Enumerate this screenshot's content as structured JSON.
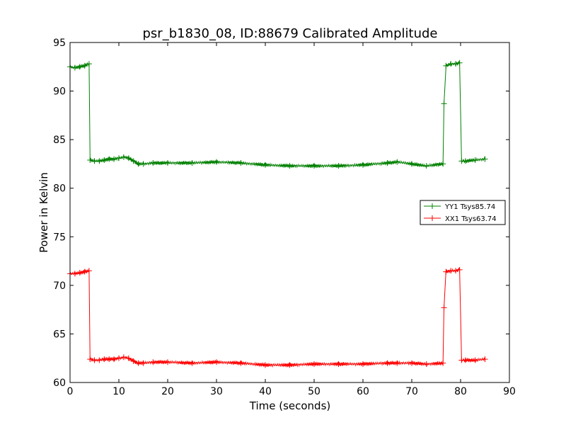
{
  "chart_data": {
    "type": "line",
    "title": "psr_b1830_08, ID:88679 Calibrated Amplitude",
    "xlabel": "Time (seconds)",
    "ylabel": "Power in Kelvin",
    "xlim": [
      0,
      90
    ],
    "ylim": [
      60,
      95
    ],
    "xticks": [
      0,
      10,
      20,
      30,
      40,
      50,
      60,
      70,
      80,
      90
    ],
    "yticks": [
      60,
      65,
      70,
      75,
      80,
      85,
      90,
      95
    ],
    "grid": false,
    "legend_position": "center-right",
    "series": [
      {
        "name": "YY1 Tsys85.74",
        "color": "#008000",
        "x": [
          0,
          1,
          2,
          3,
          3.9,
          4.1,
          5,
          6,
          7,
          8,
          9,
          10,
          11,
          12,
          13,
          14,
          15,
          17,
          20,
          25,
          30,
          35,
          40,
          45,
          50,
          55,
          60,
          65,
          67,
          70,
          73,
          76.4,
          76.6,
          77,
          78,
          79,
          79.8,
          80.2,
          81,
          83,
          85
        ],
        "y": [
          92.5,
          92.4,
          92.5,
          92.6,
          92.8,
          82.9,
          82.8,
          82.8,
          82.9,
          83.0,
          83.0,
          83.1,
          83.2,
          83.1,
          82.8,
          82.5,
          82.5,
          82.6,
          82.6,
          82.6,
          82.7,
          82.6,
          82.4,
          82.3,
          82.3,
          82.3,
          82.4,
          82.6,
          82.7,
          82.5,
          82.3,
          82.5,
          88.7,
          92.6,
          92.8,
          92.8,
          92.9,
          82.8,
          82.8,
          82.9,
          83.0
        ]
      },
      {
        "name": "XX1 Tsys63.74",
        "color": "#ff0000",
        "x": [
          0,
          1,
          2,
          3,
          3.9,
          4.1,
          5,
          6,
          7,
          8,
          9,
          10,
          11,
          12,
          13,
          14,
          15,
          17,
          20,
          25,
          30,
          35,
          40,
          45,
          50,
          55,
          60,
          65,
          67,
          70,
          73,
          76.4,
          76.6,
          77,
          78,
          79,
          79.8,
          80.2,
          81,
          83,
          85
        ],
        "y": [
          71.2,
          71.2,
          71.3,
          71.4,
          71.5,
          62.4,
          62.3,
          62.3,
          62.4,
          62.4,
          62.4,
          62.5,
          62.6,
          62.5,
          62.2,
          62.0,
          62.0,
          62.1,
          62.1,
          62.0,
          62.1,
          62.0,
          61.8,
          61.8,
          61.9,
          61.9,
          61.9,
          62.0,
          62.0,
          62.0,
          61.9,
          62.0,
          67.7,
          71.4,
          71.5,
          71.5,
          71.6,
          62.3,
          62.3,
          62.3,
          62.4
        ]
      }
    ]
  }
}
